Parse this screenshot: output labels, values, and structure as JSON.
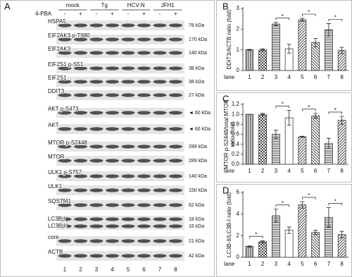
{
  "panel_a": {
    "label": "A",
    "treatment": "4-PBA",
    "groups": [
      "mock",
      "Tg",
      "HCV-N",
      "JFH1"
    ],
    "signs": [
      "-",
      "+",
      "-",
      "+",
      "-",
      "+",
      "-",
      "+"
    ],
    "rows": [
      {
        "names": [
          "HSPA5"
        ],
        "sizes": [
          "78 kDa"
        ]
      },
      {
        "names": [
          "EIF2AK3 p-T980"
        ],
        "sizes": [
          "170 kDa"
        ]
      },
      {
        "names": [
          "EIF2AK3"
        ],
        "sizes": [
          "140 kDa"
        ]
      },
      {
        "names": [
          "EIF2S1 p-S51"
        ],
        "sizes": [
          "38 kDa"
        ]
      },
      {
        "names": [
          "EIF2S1"
        ],
        "sizes": [
          "38 kDa"
        ]
      },
      {
        "names": [
          "DDIT3"
        ],
        "sizes": [
          "27 kDa"
        ]
      },
      {
        "names": [
          "AKT p-S473"
        ],
        "sizes": [
          "◄ 60 kDa"
        ]
      },
      {
        "names": [
          "AKT"
        ],
        "sizes": [
          "◄ 60 kDa"
        ]
      },
      {
        "names": [
          "MTOR p-S2448"
        ],
        "sizes": [
          "289 kDa"
        ]
      },
      {
        "names": [
          "MTOR"
        ],
        "sizes": [
          "289 kDa"
        ]
      },
      {
        "names": [
          "ULK1 p-S757"
        ],
        "sizes": [
          "140 kDa"
        ]
      },
      {
        "names": [
          "ULK1"
        ],
        "sizes": [
          "150 kDa"
        ]
      },
      {
        "names": [
          "SQSTM1"
        ],
        "sizes": [
          "62 kDa"
        ]
      },
      {
        "names": [
          "LC3B-I",
          "LC3B-II"
        ],
        "sizes": [
          "18 kDa",
          "16 kDa"
        ]
      },
      {
        "names": [
          "core"
        ],
        "sizes": [
          "21 kDa"
        ]
      },
      {
        "names": [
          "ACTB"
        ],
        "sizes": [
          "42 kDa"
        ]
      }
    ],
    "lanes": [
      "1",
      "2",
      "3",
      "4",
      "5",
      "6",
      "7",
      "8"
    ]
  },
  "chart_data": [
    {
      "type": "bar",
      "label": "B",
      "ylabel": "DDIT3/ACTB ratio (fold)",
      "xlabel": "lane",
      "categories": [
        "1",
        "2",
        "3",
        "4",
        "5",
        "6",
        "7",
        "8"
      ],
      "values": [
        1.0,
        1.0,
        2.25,
        1.05,
        2.45,
        1.35,
        1.97,
        0.97
      ],
      "errors": [
        0.02,
        0.05,
        0.08,
        0.22,
        0.07,
        0.2,
        0.3,
        0.15
      ],
      "patterns": [
        "vertical",
        "checker",
        "horizontal",
        "blank",
        "diagonal",
        "diagonal-back",
        "horizontal",
        "diagonal"
      ],
      "ylim": [
        0,
        3
      ],
      "yticks": [
        0,
        1,
        2,
        3
      ],
      "annotations": [
        {
          "text": "*",
          "between": [
            "3",
            "4"
          ]
        },
        {
          "text": "*",
          "between": [
            "5",
            "6"
          ]
        },
        {
          "text": "*",
          "between": [
            "7",
            "8"
          ]
        }
      ]
    },
    {
      "type": "bar",
      "label": "C",
      "ylabel": "MTOR p-S2448/total MTOR ratio (fold)",
      "xlabel": "lane",
      "categories": [
        "1",
        "2",
        "3",
        "4",
        "5",
        "6",
        "7",
        "8"
      ],
      "values": [
        1.0,
        1.0,
        0.6,
        0.93,
        0.55,
        0.97,
        0.42,
        0.88
      ],
      "errors": [
        0,
        0.02,
        0.08,
        0.15,
        0.01,
        0.05,
        0.1,
        0.08
      ],
      "patterns": [
        "vertical",
        "checker",
        "horizontal",
        "blank",
        "diagonal",
        "diagonal-back",
        "horizontal",
        "diagonal"
      ],
      "ylim": [
        0,
        1.2
      ],
      "yticks": [
        {
          "value": 0,
          "label": "0.0"
        },
        {
          "value": 0.2,
          "label": "0.2"
        },
        {
          "value": 0.4,
          "label": "0.4"
        },
        {
          "value": 0.6,
          "label": "0.6"
        },
        {
          "value": 0.8,
          "label": "0.8"
        },
        {
          "value": 1.0,
          "label": "1.0"
        },
        {
          "value": 1.2,
          "label": "1.2"
        }
      ],
      "annotations": [
        {
          "text": "*",
          "between": [
            "3",
            "4"
          ]
        },
        {
          "text": "*",
          "between": [
            "5",
            "6"
          ]
        },
        {
          "text": "*",
          "between": [
            "7",
            "8"
          ]
        }
      ]
    },
    {
      "type": "bar",
      "label": "D",
      "ylabel": "LC3B-II/LC3B-I ratio (fold)",
      "xlabel": "lane",
      "categories": [
        "1",
        "2",
        "3",
        "4",
        "5",
        "6",
        "7",
        "8"
      ],
      "values": [
        1.0,
        1.45,
        3.85,
        2.5,
        4.85,
        2.3,
        3.7,
        2.1
      ],
      "errors": [
        0.05,
        0.1,
        0.6,
        0.3,
        0.3,
        0.2,
        0.9,
        0.3
      ],
      "patterns": [
        "vertical",
        "checker",
        "horizontal",
        "blank",
        "diagonal",
        "diagonal-back",
        "horizontal",
        "diagonal"
      ],
      "ylim": [
        0,
        6
      ],
      "yticks": [
        0,
        2,
        4,
        6
      ],
      "annotations": [
        {
          "text": "*",
          "between": [
            "1",
            "2"
          ]
        },
        {
          "text": "*",
          "between": [
            "3",
            "4"
          ]
        },
        {
          "text": "*",
          "between": [
            "5",
            "6"
          ]
        },
        {
          "text": "*",
          "between": [
            "7",
            "8"
          ]
        }
      ]
    }
  ]
}
